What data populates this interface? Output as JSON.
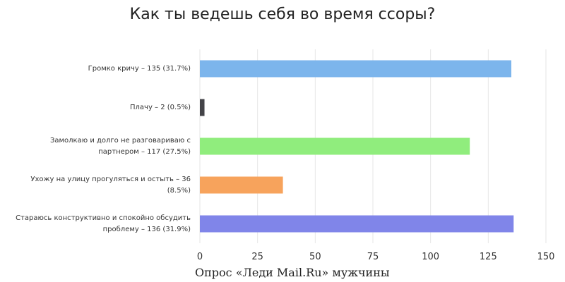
{
  "chart_data": {
    "type": "bar",
    "orientation": "horizontal",
    "title": "Как ты ведешь себя во время ссоры?",
    "categories": [
      "Громко кричу – 135 (31.7%)",
      "Плачу – 2 (0.5%)",
      "Замолкаю и долго не разговариваю с партнером – 117 (27.5%)",
      "Ухожу на улицу прогуляться и остыть – 36 (8.5%)",
      "Стараюсь конструктивно и спокойно обсудить проблему – 136 (31.9%)"
    ],
    "category_lines": [
      [
        "Громко кричу – 135 (31.7%)"
      ],
      [
        "Плачу – 2 (0.5%)"
      ],
      [
        "Замолкаю и долго не разговариваю с",
        "партнером – 117 (27.5%)"
      ],
      [
        "Ухожу на улицу прогуляться и остыть – 36",
        "(8.5%)"
      ],
      [
        "Стараюсь конструктивно и спокойно обсудить",
        "проблему – 136 (31.9%)"
      ]
    ],
    "values": [
      135,
      2,
      117,
      36,
      136
    ],
    "colors": [
      "#7cb5ec",
      "#434348",
      "#90ed7d",
      "#f7a35c",
      "#8085e9"
    ],
    "xlim": [
      0,
      150
    ],
    "ticks": [
      "0",
      "25",
      "50",
      "75",
      "100",
      "125",
      "150"
    ],
    "grid": true
  },
  "caption": "Опрос «Леди Mail.Ru» мужчины"
}
